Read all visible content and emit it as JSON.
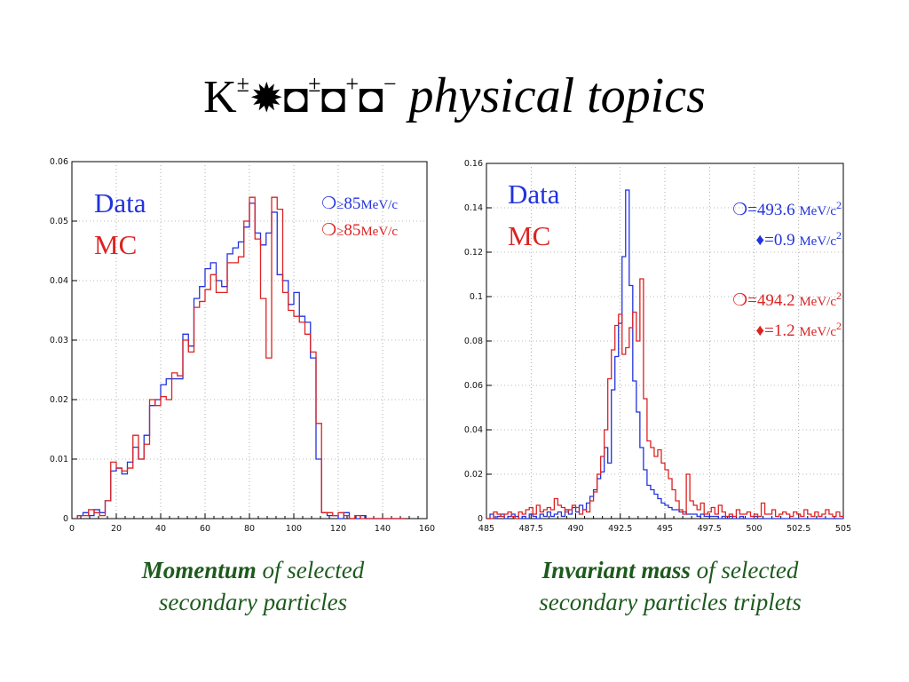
{
  "slide": {
    "title": {
      "k": "K",
      "pm1": "±",
      "arrow_glyph": "✹",
      "box_glyph": "◘",
      "pm2": "±",
      "plus": "+",
      "minus": "−",
      "text": "physical topics"
    },
    "captions": [
      {
        "bold": "Momentum",
        "rest1": " of selected",
        "line2": "secondary particles"
      },
      {
        "bold": "Invariant mass",
        "rest1": " of selected",
        "line2": "secondary particles triplets"
      }
    ]
  },
  "chart_data": [
    {
      "type": "histogram",
      "xlim": [
        0,
        160
      ],
      "ylim": [
        0,
        0.06
      ],
      "xticks": [
        0,
        20,
        40,
        60,
        80,
        100,
        120,
        140,
        160
      ],
      "yticks": [
        0,
        0.01,
        0.02,
        0.03,
        0.04,
        0.05,
        0.06
      ],
      "xtick_labels": [
        "0",
        "20",
        "40",
        "60",
        "80",
        "100",
        "120",
        "140",
        "160"
      ],
      "ytick_labels": [
        "0",
        "0.01",
        "0.02",
        "0.03",
        "0.04",
        "0.05",
        "0.06"
      ],
      "bin_width": 2.5,
      "x_start": 2.5,
      "grid": true,
      "legend": {
        "data_label": "Data",
        "mc_label": "MC",
        "position": "top-left"
      },
      "annotations": [
        {
          "series": "Data",
          "sym": "❍",
          "cmp": "≥",
          "value": "85",
          "unit": "MeV/c"
        },
        {
          "series": "MC",
          "sym": "❍",
          "cmp": "≥",
          "value": "85",
          "unit": "MeV/c"
        }
      ],
      "series": [
        {
          "name": "Data",
          "color": "#2233dd",
          "values": [
            0.0005,
            0.001,
            0.0005,
            0.0015,
            0.001,
            0.003,
            0.008,
            0.0085,
            0.0075,
            0.0095,
            0.012,
            0.01,
            0.014,
            0.019,
            0.02,
            0.0225,
            0.0235,
            0.0235,
            0.0235,
            0.031,
            0.029,
            0.037,
            0.039,
            0.042,
            0.043,
            0.04,
            0.039,
            0.0445,
            0.0455,
            0.0465,
            0.049,
            0.053,
            0.048,
            0.046,
            0.048,
            0.0515,
            0.041,
            0.04,
            0.036,
            0.038,
            0.034,
            0.033,
            0.027,
            0.01,
            0.001,
            0.0005,
            0.0005,
            0.0,
            0.001,
            0.0,
            0.0,
            0.0005,
            0.0,
            0.0,
            0.0,
            0.0,
            0.0,
            0.0,
            0.0
          ]
        },
        {
          "name": "MC",
          "color": "#dd2222",
          "values": [
            0.0005,
            0.0005,
            0.0015,
            0.001,
            0.0005,
            0.003,
            0.0095,
            0.0085,
            0.008,
            0.0085,
            0.014,
            0.01,
            0.0125,
            0.02,
            0.019,
            0.0205,
            0.02,
            0.0245,
            0.024,
            0.03,
            0.028,
            0.0355,
            0.0365,
            0.0385,
            0.041,
            0.038,
            0.038,
            0.043,
            0.043,
            0.044,
            0.05,
            0.054,
            0.047,
            0.037,
            0.027,
            0.054,
            0.052,
            0.038,
            0.035,
            0.034,
            0.033,
            0.031,
            0.028,
            0.016,
            0.001,
            0.001,
            0.0005,
            0.001,
            0.0005,
            0.0,
            0.0005,
            0.0,
            0.0,
            0.0,
            0.0,
            0.0,
            0.0,
            0.0,
            0.0
          ]
        }
      ]
    },
    {
      "type": "histogram",
      "xlim": [
        485,
        505
      ],
      "ylim": [
        0,
        0.16
      ],
      "xticks": [
        485,
        487.5,
        490,
        492.5,
        495,
        497.5,
        500,
        502.5,
        505
      ],
      "yticks": [
        0,
        0.02,
        0.04,
        0.06,
        0.08,
        0.1,
        0.12,
        0.14,
        0.16
      ],
      "xtick_labels": [
        "485",
        "487.5",
        "490",
        "492.5",
        "495",
        "497.5",
        "500",
        "502.5",
        "505"
      ],
      "ytick_labels": [
        "0",
        "0.02",
        "0.04",
        "0.06",
        "0.08",
        "0.1",
        "0.12",
        "0.14",
        "0.16"
      ],
      "bin_width": 0.2,
      "x_start": 485,
      "grid": true,
      "legend": {
        "data_label": "Data",
        "mc_label": "MC",
        "position": "top-left"
      },
      "annotations": [
        {
          "series": "Data",
          "sym": "❍",
          "text": "=493.6 ",
          "unit": "MeV/c",
          "sup": "2"
        },
        {
          "series": "Data",
          "sym": "♦",
          "text": "=0.9 ",
          "unit": "MeV/c",
          "sup": "2"
        },
        {
          "series": "MC",
          "sym": "❍",
          "text": "=494.2 ",
          "unit": "MeV/c",
          "sup": "2"
        },
        {
          "series": "MC",
          "sym": "♦",
          "text": "=1.2 ",
          "unit": "MeV/c",
          "sup": "2"
        }
      ],
      "series": [
        {
          "name": "Data",
          "color": "#2233dd",
          "values": [
            0,
            0.002,
            0,
            0.001,
            0.002,
            0,
            0.001,
            0.002,
            0.001,
            0,
            0.001,
            0,
            0.002,
            0.001,
            0,
            0.002,
            0.001,
            0.003,
            0.001,
            0.002,
            0.003,
            0.001,
            0.004,
            0.002,
            0.005,
            0.003,
            0.006,
            0.004,
            0.007,
            0.01,
            0.013,
            0.018,
            0.021,
            0.032,
            0.025,
            0.058,
            0.073,
            0.088,
            0.118,
            0.148,
            0.105,
            0.062,
            0.048,
            0.032,
            0.022,
            0.015,
            0.013,
            0.011,
            0.009,
            0.007,
            0.006,
            0.005,
            0.004,
            0.004,
            0.003,
            0.003,
            0.002,
            0.002,
            0.002,
            0.001,
            0.002,
            0.001,
            0.001,
            0.001,
            0.001,
            0,
            0.001,
            0,
            0.001,
            0,
            0,
            0.001,
            0,
            0,
            0,
            0.001,
            0,
            0,
            0,
            0,
            0,
            0,
            0,
            0,
            0,
            0,
            0,
            0,
            0,
            0,
            0,
            0,
            0,
            0,
            0,
            0,
            0,
            0,
            0,
            0
          ]
        },
        {
          "name": "MC",
          "color": "#dd2222",
          "values": [
            0,
            0,
            0.003,
            0.002,
            0.001,
            0.002,
            0.003,
            0.001,
            0,
            0.003,
            0.002,
            0.004,
            0.005,
            0.002,
            0.006,
            0.003,
            0.004,
            0.005,
            0.004,
            0.009,
            0.006,
            0.005,
            0.003,
            0.004,
            0.006,
            0.005,
            0.002,
            0.004,
            0.003,
            0.008,
            0.012,
            0.02,
            0.028,
            0.04,
            0.063,
            0.076,
            0.087,
            0.092,
            0.074,
            0.077,
            0.086,
            0.093,
            0.08,
            0.108,
            0.054,
            0.035,
            0.032,
            0.028,
            0.031,
            0.025,
            0.022,
            0.018,
            0.013,
            0.008,
            0.004,
            0.002,
            0.02,
            0.008,
            0.006,
            0.004,
            0.007,
            0.002,
            0.003,
            0.005,
            0.002,
            0.006,
            0.003,
            0.001,
            0.002,
            0.001,
            0.004,
            0.002,
            0.002,
            0.003,
            0.001,
            0.002,
            0.001,
            0.007,
            0.002,
            0.002,
            0.004,
            0.001,
            0.002,
            0.003,
            0.002,
            0.001,
            0.003,
            0.002,
            0.001,
            0.004,
            0.002,
            0.001,
            0.003,
            0.001,
            0.002,
            0.004,
            0.002,
            0.001,
            0.003,
            0.001
          ]
        }
      ]
    }
  ]
}
